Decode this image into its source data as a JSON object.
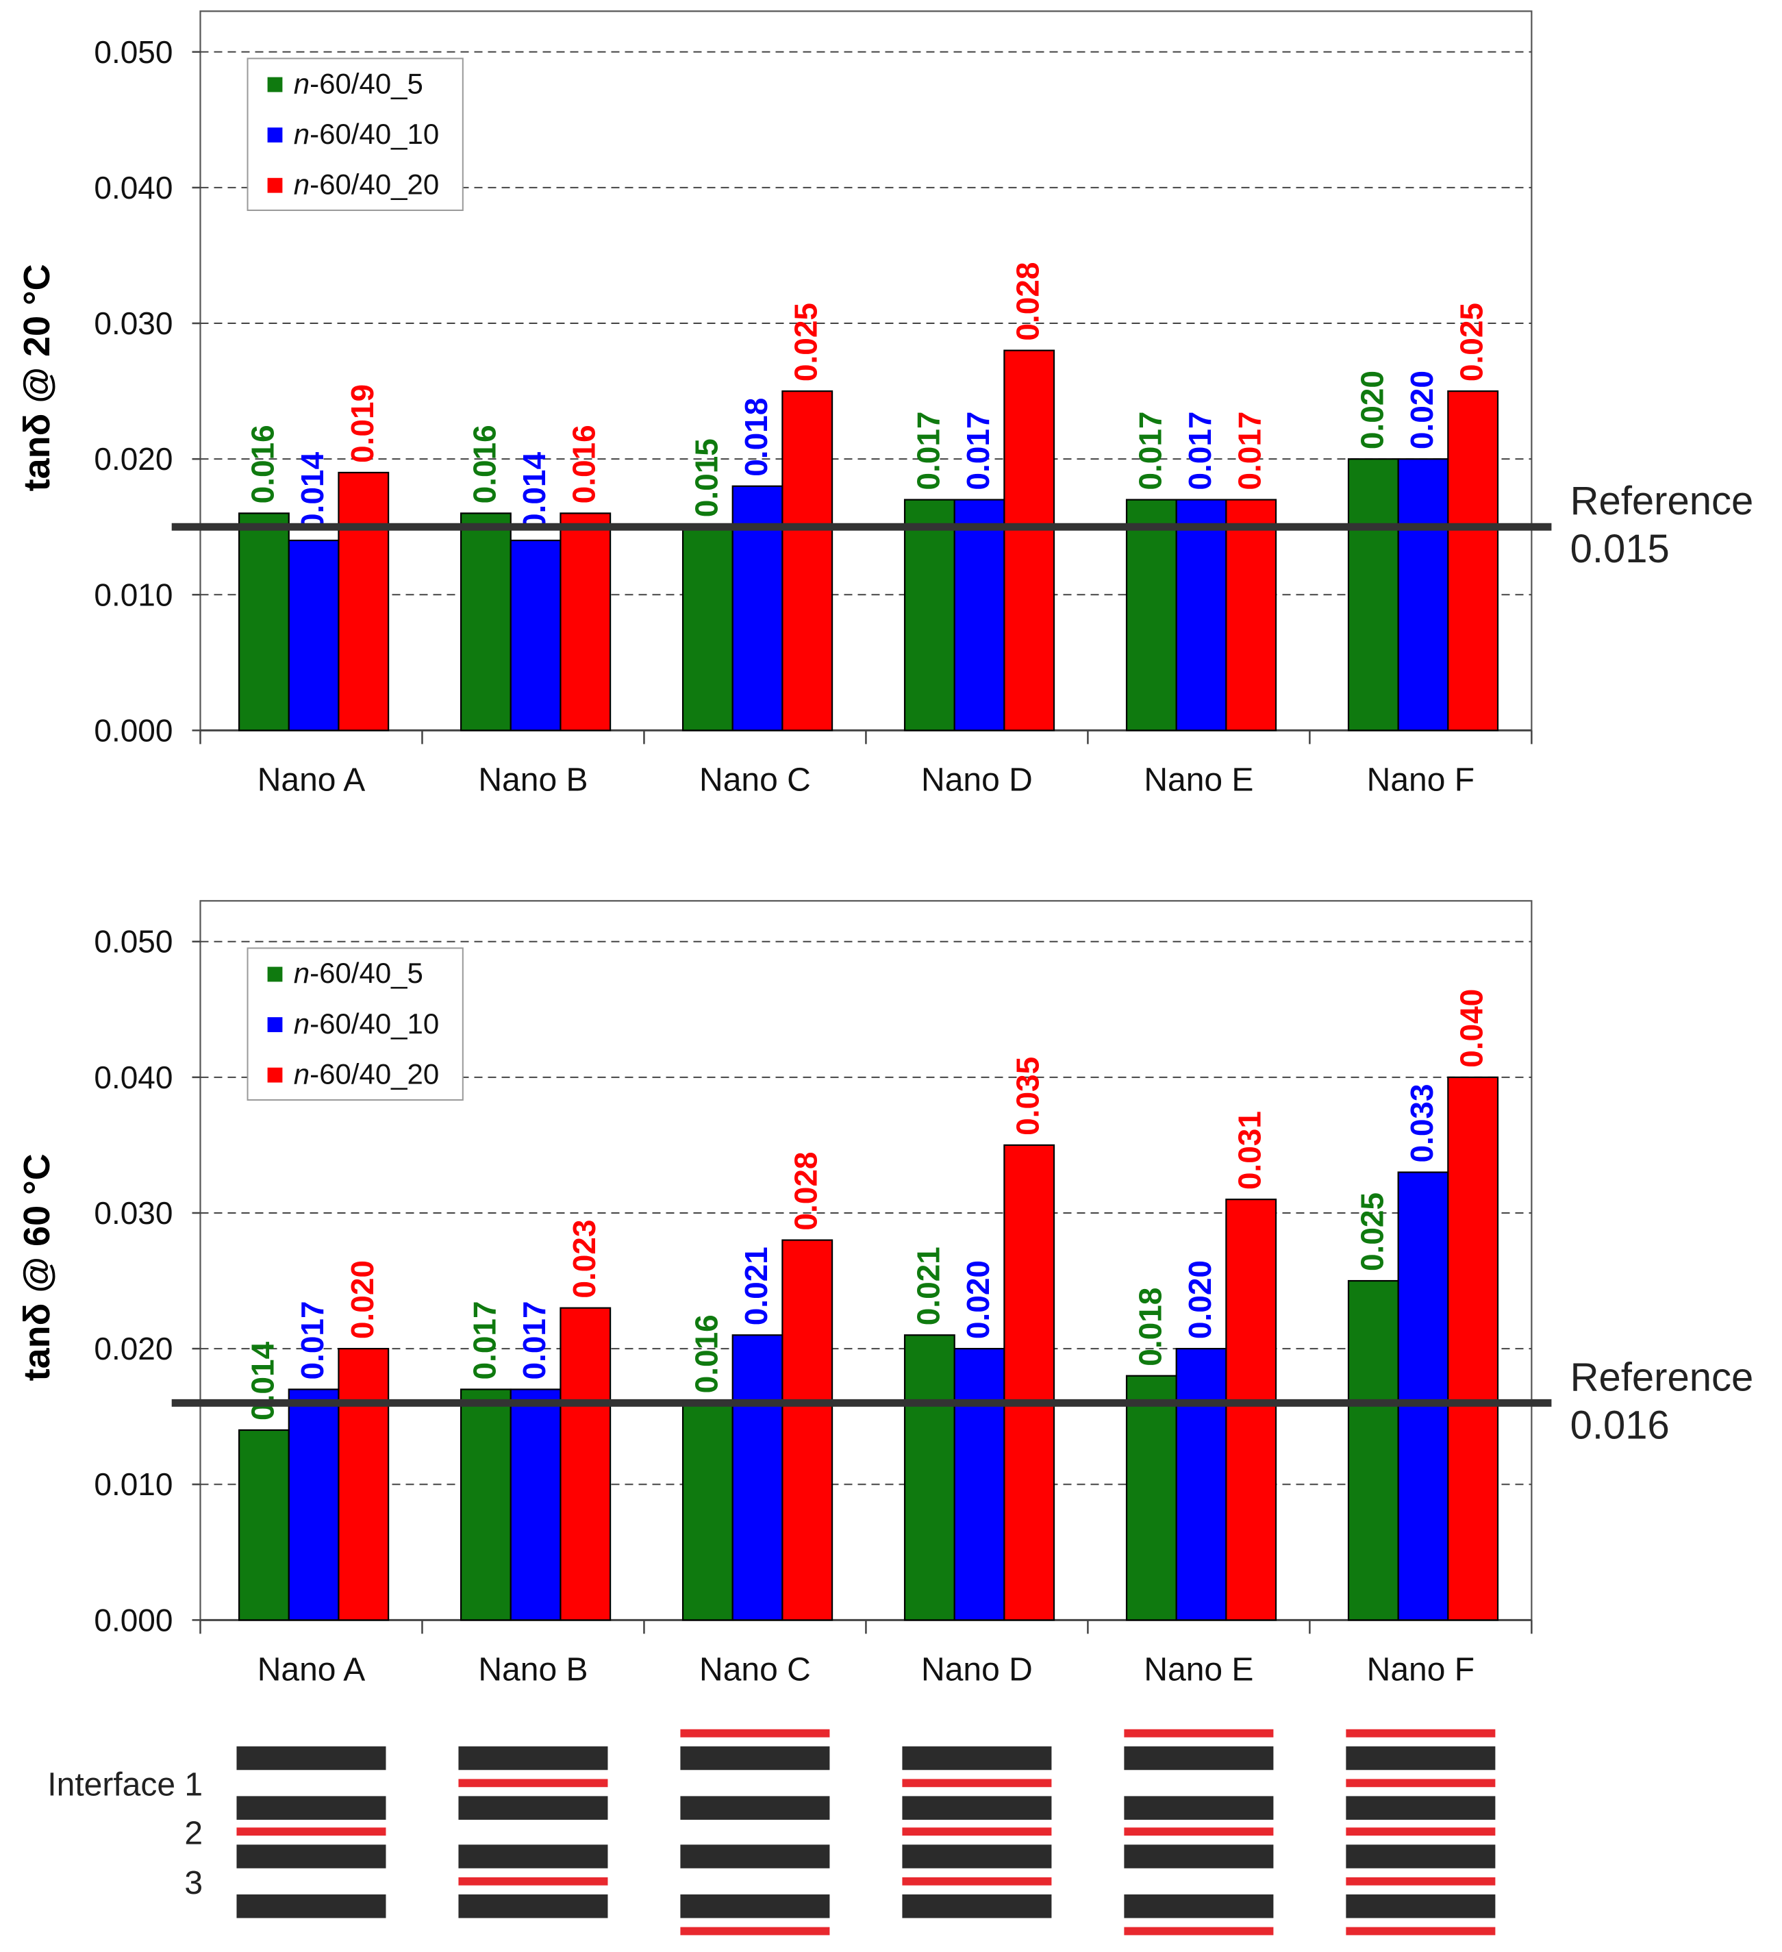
{
  "chart_data": [
    {
      "type": "bar",
      "categories": [
        "Nano A",
        "Nano B",
        "Nano C",
        "Nano D",
        "Nano E",
        "Nano F"
      ],
      "series": [
        {
          "name": "n-60/40_5",
          "name_prefix": "n",
          "name_suffix": "-60/40_5",
          "color": "#0f7a0f",
          "values": [
            0.016,
            0.016,
            0.015,
            0.017,
            0.017,
            0.02
          ],
          "labels": [
            "0.016",
            "0.016",
            "0.015",
            "0.017",
            "0.017",
            "0.020"
          ]
        },
        {
          "name": "n-60/40_10",
          "name_prefix": "n",
          "name_suffix": "-60/40_10",
          "color": "#0000ff",
          "values": [
            0.014,
            0.014,
            0.018,
            0.017,
            0.017,
            0.02
          ],
          "labels": [
            "0.014",
            "0.014",
            "0.018",
            "0.017",
            "0.017",
            "0.020"
          ]
        },
        {
          "name": "n-60/40_20",
          "name_prefix": "n",
          "name_suffix": "-60/40_20",
          "color": "#ff0000",
          "values": [
            0.019,
            0.016,
            0.025,
            0.028,
            0.017,
            0.025
          ],
          "labels": [
            "0.019",
            "0.016",
            "0.025",
            "0.028",
            "0.017",
            "0.025"
          ]
        }
      ],
      "ylabel": "tanδ @ 20 °C",
      "ylim": [
        0,
        0.053
      ],
      "yticks": [
        0,
        0.01,
        0.02,
        0.03,
        0.04,
        0.05
      ],
      "ytick_labels": [
        "0.000",
        "0.010",
        "0.020",
        "0.030",
        "0.040",
        "0.050"
      ],
      "grid": true,
      "legend_position": "top-left",
      "reference": {
        "value": 0.015,
        "label_line1": "Reference",
        "label_line2": "0.015"
      }
    },
    {
      "type": "bar",
      "categories": [
        "Nano A",
        "Nano B",
        "Nano C",
        "Nano D",
        "Nano E",
        "Nano F"
      ],
      "series": [
        {
          "name": "n-60/40_5",
          "name_prefix": "n",
          "name_suffix": "-60/40_5",
          "color": "#0f7a0f",
          "values": [
            0.014,
            0.017,
            0.016,
            0.021,
            0.018,
            0.025
          ],
          "labels": [
            "0.014",
            "0.017",
            "0.016",
            "0.021",
            "0.018",
            "0.025"
          ]
        },
        {
          "name": "n-60/40_10",
          "name_prefix": "n",
          "name_suffix": "-60/40_10",
          "color": "#0000ff",
          "values": [
            0.017,
            0.017,
            0.021,
            0.02,
            0.02,
            0.033
          ],
          "labels": [
            "0.017",
            "0.017",
            "0.021",
            "0.020",
            "0.020",
            "0.033"
          ]
        },
        {
          "name": "n-60/40_20",
          "name_prefix": "n",
          "name_suffix": "-60/40_20",
          "color": "#ff0000",
          "values": [
            0.02,
            0.023,
            0.028,
            0.035,
            0.031,
            0.04
          ],
          "labels": [
            "0.020",
            "0.023",
            "0.028",
            "0.035",
            "0.031",
            "0.040"
          ]
        }
      ],
      "ylabel": "tanδ @ 60 °C",
      "ylim": [
        0,
        0.053
      ],
      "yticks": [
        0,
        0.01,
        0.02,
        0.03,
        0.04,
        0.05
      ],
      "ytick_labels": [
        "0.000",
        "0.010",
        "0.020",
        "0.030",
        "0.040",
        "0.050"
      ],
      "grid": true,
      "legend_position": "top-left",
      "reference": {
        "value": 0.016,
        "label_line1": "Reference",
        "label_line2": "0.016"
      }
    }
  ],
  "interface_diagram": {
    "row_labels": [
      "Interface 1",
      "2",
      "3"
    ],
    "layer_color": "#2b2b2b",
    "nano_color": "#e8282e",
    "configurations": [
      {
        "category": "Nano A",
        "top": false,
        "interface_1": false,
        "interface_2": true,
        "interface_3": false,
        "bottom": false
      },
      {
        "category": "Nano B",
        "top": false,
        "interface_1": true,
        "interface_2": false,
        "interface_3": true,
        "bottom": false
      },
      {
        "category": "Nano C",
        "top": true,
        "interface_1": false,
        "interface_2": false,
        "interface_3": false,
        "bottom": true
      },
      {
        "category": "Nano D",
        "top": false,
        "interface_1": true,
        "interface_2": true,
        "interface_3": true,
        "bottom": false
      },
      {
        "category": "Nano E",
        "top": true,
        "interface_1": false,
        "interface_2": true,
        "interface_3": false,
        "bottom": true
      },
      {
        "category": "Nano F",
        "top": true,
        "interface_1": true,
        "interface_2": true,
        "interface_3": true,
        "bottom": true
      }
    ]
  }
}
